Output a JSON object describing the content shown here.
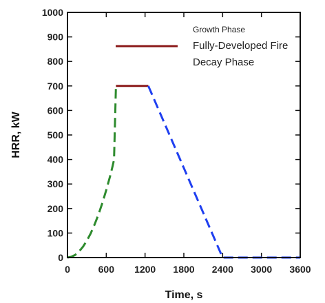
{
  "chart_data": {
    "type": "line",
    "xlabel": "Time, s",
    "ylabel": "HRR, kW",
    "xlim": [
      0,
      3600
    ],
    "ylim": [
      0,
      1000
    ],
    "xticks": [
      0,
      600,
      1200,
      1800,
      2400,
      3000,
      3600
    ],
    "yticks": [
      0,
      100,
      200,
      300,
      400,
      500,
      600,
      700,
      800,
      900,
      1000
    ],
    "grid": false,
    "legend_position": "top-right",
    "series": [
      {
        "name": "Growth Phase",
        "color": "#2e8b2e",
        "style": "dashed",
        "points": [
          [
            0,
            0
          ],
          [
            60,
            3
          ],
          [
            120,
            11
          ],
          [
            180,
            25
          ],
          [
            240,
            44
          ],
          [
            300,
            69
          ],
          [
            360,
            99
          ],
          [
            420,
            135
          ],
          [
            480,
            176
          ],
          [
            540,
            223
          ],
          [
            600,
            275
          ],
          [
            660,
            333
          ],
          [
            700,
            375
          ],
          [
            720,
            399
          ],
          [
            750,
            700
          ]
        ],
        "in_legend": true
      },
      {
        "name": "Fully-Developed Fire",
        "color": "#8b1a1a",
        "style": "solid",
        "points": [
          [
            750,
            700
          ],
          [
            1250,
            700
          ]
        ],
        "in_legend": true
      },
      {
        "name": "Decay Phase",
        "color": "#1f3ff0",
        "style": "dashed",
        "points": [
          [
            1250,
            700
          ],
          [
            2400,
            0
          ],
          [
            3600,
            0
          ]
        ],
        "in_legend": true
      }
    ]
  }
}
